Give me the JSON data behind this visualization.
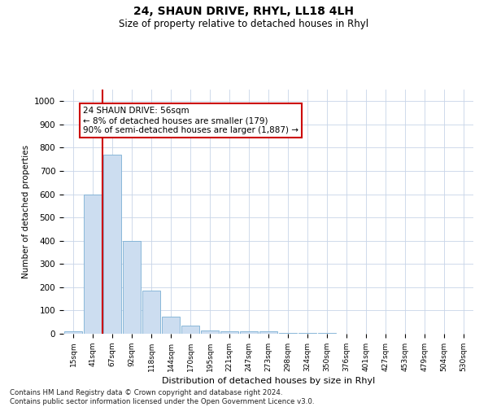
{
  "title": "24, SHAUN DRIVE, RHYL, LL18 4LH",
  "subtitle": "Size of property relative to detached houses in Rhyl",
  "xlabel": "Distribution of detached houses by size in Rhyl",
  "ylabel": "Number of detached properties",
  "categories": [
    "15sqm",
    "41sqm",
    "67sqm",
    "92sqm",
    "118sqm",
    "144sqm",
    "170sqm",
    "195sqm",
    "221sqm",
    "247sqm",
    "273sqm",
    "298sqm",
    "324sqm",
    "350sqm",
    "376sqm",
    "401sqm",
    "427sqm",
    "453sqm",
    "479sqm",
    "504sqm",
    "530sqm"
  ],
  "values": [
    12,
    600,
    770,
    400,
    185,
    75,
    35,
    15,
    10,
    12,
    10,
    5,
    3,
    2,
    1,
    0,
    0,
    0,
    0,
    0,
    0
  ],
  "bar_color": "#ccddf0",
  "bar_edge_color": "#7bafd4",
  "vline_x_idx": 1.5,
  "vline_color": "#cc0000",
  "annotation_text": "24 SHAUN DRIVE: 56sqm\n← 8% of detached houses are smaller (179)\n90% of semi-detached houses are larger (1,887) →",
  "annotation_box_color": "white",
  "annotation_box_edge_color": "#cc0000",
  "ylim": [
    0,
    1050
  ],
  "yticks": [
    0,
    100,
    200,
    300,
    400,
    500,
    600,
    700,
    800,
    900,
    1000
  ],
  "footer": "Contains HM Land Registry data © Crown copyright and database right 2024.\nContains public sector information licensed under the Open Government Licence v3.0.",
  "background_color": "#ffffff",
  "grid_color": "#c8d4e8"
}
